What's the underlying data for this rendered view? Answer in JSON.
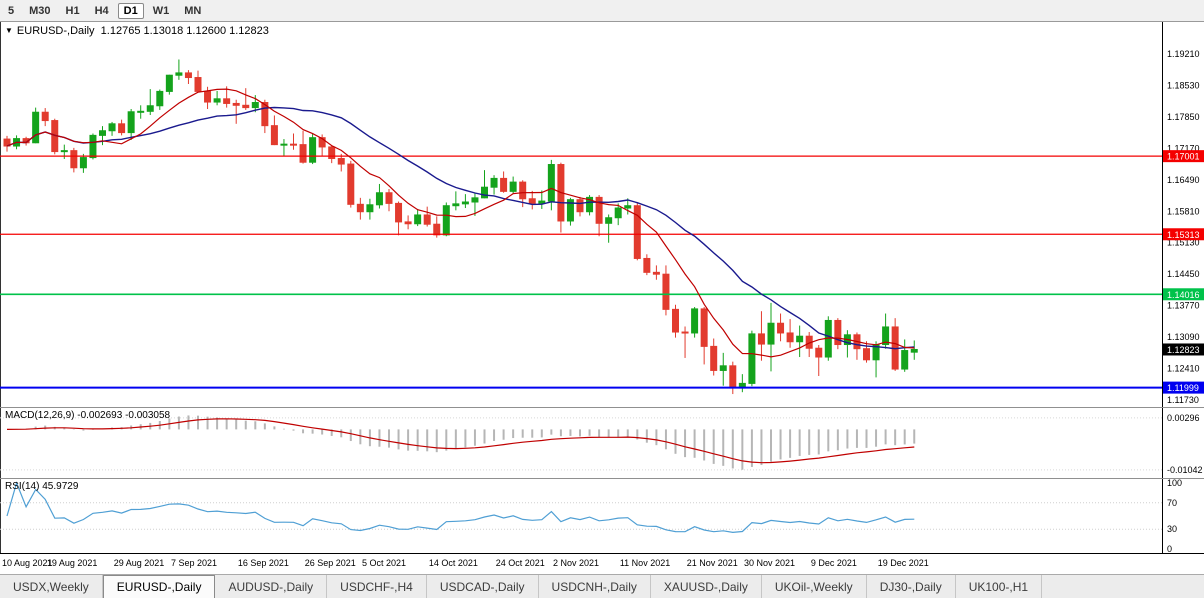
{
  "toolbar": {
    "timeframes": [
      {
        "label": "5",
        "active": false
      },
      {
        "label": "M30",
        "active": false
      },
      {
        "label": "H1",
        "active": false
      },
      {
        "label": "H4",
        "active": false
      },
      {
        "label": "D1",
        "active": true
      },
      {
        "label": "W1",
        "active": false
      },
      {
        "label": "MN",
        "active": false
      }
    ]
  },
  "chart_data": {
    "type": "candlestick",
    "symbol_header": "EURUSD-,Daily",
    "ohlc_text": "1.12765 1.13018 1.12600 1.12823",
    "ylim": [
      1.1158,
      1.199
    ],
    "y_ticks": [
      "1.19210",
      "1.18530",
      "1.17850",
      "1.17170",
      "1.16490",
      "1.15810",
      "1.15130",
      "1.14450",
      "1.13770",
      "1.13090",
      "1.12410",
      "1.11730"
    ],
    "levels": [
      {
        "price": 1.17001,
        "label": "1.17001",
        "color": "#f40000",
        "width": 1.2
      },
      {
        "price": 1.15313,
        "label": "1.15313",
        "color": "#f40000",
        "width": 1.2
      },
      {
        "price": 1.14016,
        "label": "1.14016",
        "color": "#00c24a",
        "width": 1.6
      },
      {
        "price": 1.11999,
        "label": "1.11999",
        "color": "#0000f0",
        "width": 2
      }
    ],
    "current_price": {
      "price": 1.12823,
      "label": "1.12823",
      "color": "#000000"
    },
    "colors": {
      "candle_up": "#14a31c",
      "candle_down": "#e23b2e",
      "ma_fast": "#c00000",
      "ma_slow": "#1a1a8e",
      "macd_hist": "#b6b6b6",
      "macd_signal": "#c00000",
      "rsi": "#4f9fd4",
      "axis_text": "#000000"
    },
    "candles": [
      [
        1.1737,
        1.1744,
        1.171,
        1.1722
      ],
      [
        1.1722,
        1.1745,
        1.1715,
        1.1738
      ],
      [
        1.1738,
        1.1742,
        1.1723,
        1.1729
      ],
      [
        1.1729,
        1.1805,
        1.1728,
        1.1795
      ],
      [
        1.1795,
        1.1804,
        1.1765,
        1.1777
      ],
      [
        1.1777,
        1.1781,
        1.1704,
        1.171
      ],
      [
        1.171,
        1.1725,
        1.1694,
        1.1712
      ],
      [
        1.1712,
        1.1718,
        1.1665,
        1.1675
      ],
      [
        1.1675,
        1.1705,
        1.1664,
        1.1697
      ],
      [
        1.1697,
        1.1749,
        1.1693,
        1.1745
      ],
      [
        1.1745,
        1.1765,
        1.1724,
        1.1755
      ],
      [
        1.1755,
        1.1774,
        1.1744,
        1.177
      ],
      [
        1.177,
        1.1779,
        1.1745,
        1.1751
      ],
      [
        1.1751,
        1.1802,
        1.1735,
        1.1796
      ],
      [
        1.1796,
        1.181,
        1.1781,
        1.1797
      ],
      [
        1.1797,
        1.1845,
        1.1789,
        1.1809
      ],
      [
        1.1809,
        1.1844,
        1.18,
        1.184
      ],
      [
        1.184,
        1.1876,
        1.1833,
        1.1875
      ],
      [
        1.1875,
        1.1909,
        1.1865,
        1.188
      ],
      [
        1.188,
        1.1886,
        1.1856,
        1.187
      ],
      [
        1.187,
        1.1885,
        1.1838,
        1.184
      ],
      [
        1.184,
        1.185,
        1.1802,
        1.1817
      ],
      [
        1.1817,
        1.1841,
        1.181,
        1.1824
      ],
      [
        1.1824,
        1.1851,
        1.1805,
        1.1814
      ],
      [
        1.1814,
        1.1822,
        1.177,
        1.181
      ],
      [
        1.181,
        1.1847,
        1.18,
        1.1805
      ],
      [
        1.1805,
        1.1832,
        1.1795,
        1.1816
      ],
      [
        1.1816,
        1.1822,
        1.175,
        1.1766
      ],
      [
        1.1766,
        1.1788,
        1.1724,
        1.1725
      ],
      [
        1.1725,
        1.1737,
        1.17,
        1.1726
      ],
      [
        1.1726,
        1.1749,
        1.1714,
        1.1725
      ],
      [
        1.1725,
        1.1755,
        1.1684,
        1.1687
      ],
      [
        1.1687,
        1.175,
        1.1683,
        1.174
      ],
      [
        1.174,
        1.1747,
        1.1701,
        1.172
      ],
      [
        1.172,
        1.1722,
        1.1685,
        1.1695
      ],
      [
        1.1695,
        1.1705,
        1.1667,
        1.1683
      ],
      [
        1.1683,
        1.169,
        1.1589,
        1.1596
      ],
      [
        1.1596,
        1.161,
        1.1563,
        1.158
      ],
      [
        1.158,
        1.1608,
        1.1563,
        1.1595
      ],
      [
        1.1595,
        1.164,
        1.1587,
        1.1621
      ],
      [
        1.1621,
        1.1629,
        1.1581,
        1.1598
      ],
      [
        1.1598,
        1.1602,
        1.1529,
        1.1558
      ],
      [
        1.1558,
        1.1572,
        1.1542,
        1.1554
      ],
      [
        1.1554,
        1.1586,
        1.1549,
        1.1573
      ],
      [
        1.1573,
        1.1591,
        1.1548,
        1.1553
      ],
      [
        1.1553,
        1.157,
        1.1524,
        1.153
      ],
      [
        1.153,
        1.16,
        1.1527,
        1.1593
      ],
      [
        1.1593,
        1.1624,
        1.1583,
        1.1597
      ],
      [
        1.1597,
        1.1618,
        1.1588,
        1.1601
      ],
      [
        1.1601,
        1.1621,
        1.1571,
        1.161
      ],
      [
        1.161,
        1.167,
        1.1609,
        1.1633
      ],
      [
        1.1633,
        1.1659,
        1.1617,
        1.1652
      ],
      [
        1.1652,
        1.1667,
        1.1621,
        1.1624
      ],
      [
        1.1624,
        1.1656,
        1.162,
        1.1644
      ],
      [
        1.1644,
        1.1648,
        1.159,
        1.1608
      ],
      [
        1.1608,
        1.1625,
        1.1585,
        1.1598
      ],
      [
        1.1598,
        1.1626,
        1.1586,
        1.1603
      ],
      [
        1.1603,
        1.1692,
        1.1583,
        1.1682
      ],
      [
        1.1682,
        1.1686,
        1.1535,
        1.156
      ],
      [
        1.156,
        1.161,
        1.155,
        1.1606
      ],
      [
        1.1606,
        1.1612,
        1.157,
        1.158
      ],
      [
        1.158,
        1.1616,
        1.1572,
        1.1611
      ],
      [
        1.1611,
        1.1616,
        1.1527,
        1.1555
      ],
      [
        1.1555,
        1.1574,
        1.1513,
        1.1567
      ],
      [
        1.1567,
        1.1598,
        1.1551,
        1.1588
      ],
      [
        1.1588,
        1.1609,
        1.1574,
        1.1593
      ],
      [
        1.1593,
        1.16,
        1.1475,
        1.1479
      ],
      [
        1.1479,
        1.1488,
        1.1443,
        1.1449
      ],
      [
        1.1449,
        1.1464,
        1.1433,
        1.1445
      ],
      [
        1.1445,
        1.1464,
        1.1356,
        1.1369
      ],
      [
        1.1369,
        1.1379,
        1.1308,
        1.132
      ],
      [
        1.132,
        1.1332,
        1.1264,
        1.1318
      ],
      [
        1.1318,
        1.1374,
        1.1308,
        1.137
      ],
      [
        1.137,
        1.1374,
        1.125,
        1.1289
      ],
      [
        1.1289,
        1.1306,
        1.1226,
        1.1237
      ],
      [
        1.1237,
        1.1275,
        1.1204,
        1.1247
      ],
      [
        1.1247,
        1.1256,
        1.1186,
        1.1199
      ],
      [
        1.1199,
        1.1229,
        1.119,
        1.1209
      ],
      [
        1.1209,
        1.1323,
        1.1203,
        1.1316
      ],
      [
        1.1316,
        1.1365,
        1.1258,
        1.1294
      ],
      [
        1.1294,
        1.1383,
        1.1235,
        1.1339
      ],
      [
        1.1339,
        1.136,
        1.13,
        1.1318
      ],
      [
        1.1318,
        1.1348,
        1.1286,
        1.1299
      ],
      [
        1.1299,
        1.1334,
        1.1266,
        1.1311
      ],
      [
        1.1311,
        1.132,
        1.1266,
        1.1285
      ],
      [
        1.1285,
        1.1292,
        1.1225,
        1.1266
      ],
      [
        1.1266,
        1.1354,
        1.1258,
        1.1345
      ],
      [
        1.1345,
        1.135,
        1.1283,
        1.1293
      ],
      [
        1.1293,
        1.1324,
        1.1265,
        1.1314
      ],
      [
        1.1314,
        1.1319,
        1.126,
        1.1284
      ],
      [
        1.1284,
        1.13,
        1.1254,
        1.126
      ],
      [
        1.126,
        1.13,
        1.1222,
        1.1293
      ],
      [
        1.1293,
        1.136,
        1.1284,
        1.1331
      ],
      [
        1.1331,
        1.135,
        1.1236,
        1.124
      ],
      [
        1.124,
        1.1304,
        1.1234,
        1.128
      ],
      [
        1.12765,
        1.13018,
        1.126,
        1.12823
      ]
    ],
    "x_labels": [
      {
        "text": "10 Aug 2021",
        "i": 0
      },
      {
        "text": "19 Aug 2021",
        "i": 7
      },
      {
        "text": "29 Aug 2021",
        "i": 14
      },
      {
        "text": "7 Sep 2021",
        "i": 20
      },
      {
        "text": "16 Sep 2021",
        "i": 27
      },
      {
        "text": "26 Sep 2021",
        "i": 34
      },
      {
        "text": "5 Oct 2021",
        "i": 40
      },
      {
        "text": "14 Oct 2021",
        "i": 47
      },
      {
        "text": "24 Oct 2021",
        "i": 54
      },
      {
        "text": "2 Nov 2021",
        "i": 60
      },
      {
        "text": "11 Nov 2021",
        "i": 67
      },
      {
        "text": "21 Nov 2021",
        "i": 74
      },
      {
        "text": "30 Nov 2021",
        "i": 80
      },
      {
        "text": "9 Dec 2021",
        "i": 87
      },
      {
        "text": "19 Dec 2021",
        "i": 94
      }
    ],
    "ma": [
      {
        "name": "fast",
        "period": 8
      },
      {
        "name": "slow",
        "period": 20
      }
    ],
    "macd": {
      "label": "MACD(12,26,9) -0.002693 -0.003058",
      "params": [
        12,
        26,
        9
      ],
      "values_text": [
        "-0.002693",
        "-0.003058"
      ],
      "y_ticks": [
        "0.00296",
        "-0.01042"
      ],
      "ylim": [
        -0.0125,
        0.0055
      ]
    },
    "rsi": {
      "label": "RSI(14) 45.9729",
      "period": 14,
      "value_text": "45.9729",
      "y_ticks": [
        "100",
        "70",
        "30",
        "0"
      ],
      "levels": [
        70,
        30
      ]
    }
  },
  "tabs": [
    {
      "label": "USDX,Weekly",
      "active": false
    },
    {
      "label": "EURUSD-,Daily",
      "active": true
    },
    {
      "label": "AUDUSD-,Daily",
      "active": false
    },
    {
      "label": "USDCHF-,H4",
      "active": false
    },
    {
      "label": "USDCAD-,Daily",
      "active": false
    },
    {
      "label": "USDCNH-,Daily",
      "active": false
    },
    {
      "label": "XAUUSD-,Daily",
      "active": false
    },
    {
      "label": "UKOil-,Weekly",
      "active": false
    },
    {
      "label": "DJ30-,Daily",
      "active": false
    },
    {
      "label": "UK100-,H1",
      "active": false
    }
  ]
}
